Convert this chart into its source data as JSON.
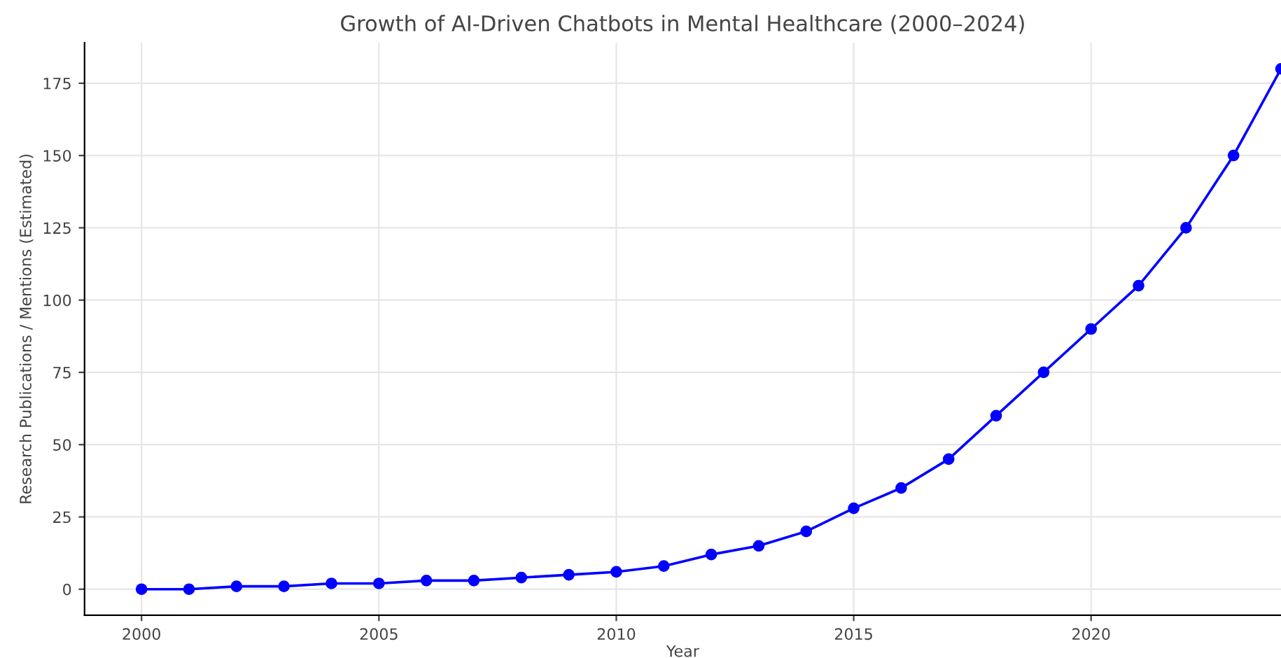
{
  "chart_data": {
    "type": "line",
    "title": "Growth of AI-Driven Chatbots in Mental Healthcare (2000–2024)",
    "xlabel": "Year",
    "ylabel": "Research Publications / Mentions (Estimated)",
    "x": [
      2000,
      2001,
      2002,
      2003,
      2004,
      2005,
      2006,
      2007,
      2008,
      2009,
      2010,
      2011,
      2012,
      2013,
      2014,
      2015,
      2016,
      2017,
      2018,
      2019,
      2020,
      2021,
      2022,
      2023,
      2024
    ],
    "series": [
      {
        "color": "#0000ff",
        "values": [
          0,
          0,
          1,
          1,
          2,
          2,
          3,
          3,
          4,
          5,
          6,
          8,
          12,
          15,
          20,
          28,
          35,
          45,
          60,
          75,
          90,
          105,
          125,
          150,
          180
        ]
      }
    ],
    "xlim": [
      1998.8,
      2024
    ],
    "xticks": [
      2000,
      2005,
      2010,
      2015,
      2020
    ],
    "ylim": [
      -9,
      189
    ],
    "yticks": [
      0,
      25,
      50,
      75,
      100,
      125,
      150,
      175
    ],
    "grid": true,
    "marker": "circle",
    "line_style": "solid",
    "legend": false
  }
}
